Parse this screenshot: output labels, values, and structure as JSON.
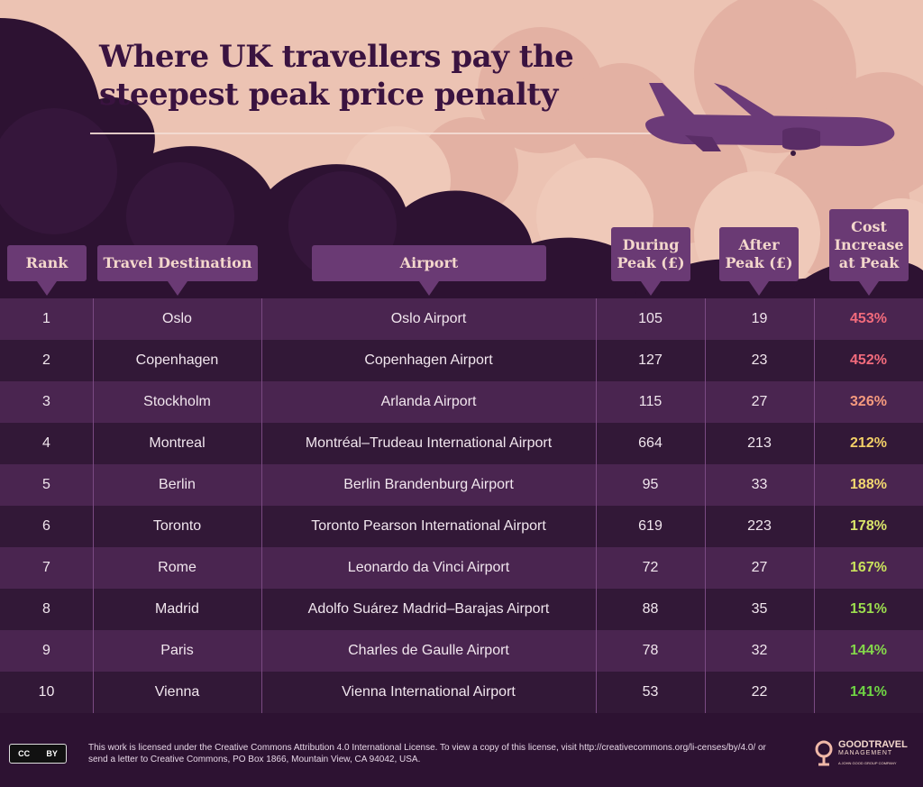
{
  "chart_data": {
    "type": "table",
    "title": "Where UK travellers pay the steepest peak price penalty",
    "columns": [
      "Rank",
      "Travel Destination",
      "Airport",
      "During\nPeak (£)",
      "After\nPeak (£)",
      "Cost\nIncrease\nat Peak"
    ],
    "rows": [
      {
        "rank": "1",
        "destination": "Oslo",
        "airport": "Oslo Airport",
        "during_peak": 105,
        "after_peak": 19,
        "increase": "453%",
        "increase_color": "#f26b7c"
      },
      {
        "rank": "2",
        "destination": "Copenhagen",
        "airport": "Copenhagen Airport",
        "during_peak": 127,
        "after_peak": 23,
        "increase": "452%",
        "increase_color": "#f26b7c"
      },
      {
        "rank": "3",
        "destination": "Stockholm",
        "airport": "Arlanda Airport",
        "during_peak": 115,
        "after_peak": 27,
        "increase": "326%",
        "increase_color": "#f59a7e"
      },
      {
        "rank": "4",
        "destination": "Montreal",
        "airport": "Montréal–Trudeau International Airport",
        "during_peak": 664,
        "after_peak": 213,
        "increase": "212%",
        "increase_color": "#f2cf67"
      },
      {
        "rank": "5",
        "destination": "Berlin",
        "airport": "Berlin Brandenburg Airport",
        "during_peak": 95,
        "after_peak": 33,
        "increase": "188%",
        "increase_color": "#f2d870"
      },
      {
        "rank": "6",
        "destination": "Toronto",
        "airport": "Toronto Pearson International Airport",
        "during_peak": 619,
        "after_peak": 223,
        "increase": "178%",
        "increase_color": "#d9e46a"
      },
      {
        "rank": "7",
        "destination": "Rome",
        "airport": "Leonardo da Vinci Airport",
        "during_peak": 72,
        "after_peak": 27,
        "increase": "167%",
        "increase_color": "#c9e15c"
      },
      {
        "rank": "8",
        "destination": "Madrid",
        "airport": "Adolfo Suárez Madrid–Barajas Airport",
        "during_peak": 88,
        "after_peak": 35,
        "increase": "151%",
        "increase_color": "#9bdc4e"
      },
      {
        "rank": "9",
        "destination": "Paris",
        "airport": "Charles de Gaulle Airport",
        "during_peak": 78,
        "after_peak": 32,
        "increase": "144%",
        "increase_color": "#84d84a"
      },
      {
        "rank": "10",
        "destination": "Vienna",
        "airport": "Vienna International Airport",
        "during_peak": 53,
        "after_peak": 22,
        "increase": "141%",
        "increase_color": "#6fd544"
      }
    ]
  },
  "title_lines": [
    "Where UK travellers pay the",
    "steepest peak price penalty"
  ],
  "footer": {
    "license_badge_left": "CC",
    "license_badge_right": "BY",
    "license_text": "This work is licensed under the Creative Commons Attribution 4.0 International License. To view a copy of this license, visit http://creativecommons.org/li-censes/by/4.0/ or send a letter to Creative Commons, PO Box 1866, Mountain View, CA 94042, USA."
  },
  "logo": {
    "name": "GOODTRAVEL",
    "sub": "MANAGEMENT",
    "tag": "A JOHN GOOD GROUP COMPANY"
  },
  "colors": {
    "sky": "#ecc3b3",
    "cloud_dark": "#2d1232",
    "header_box": "#6a3a74",
    "plane": "#6b3a78"
  }
}
